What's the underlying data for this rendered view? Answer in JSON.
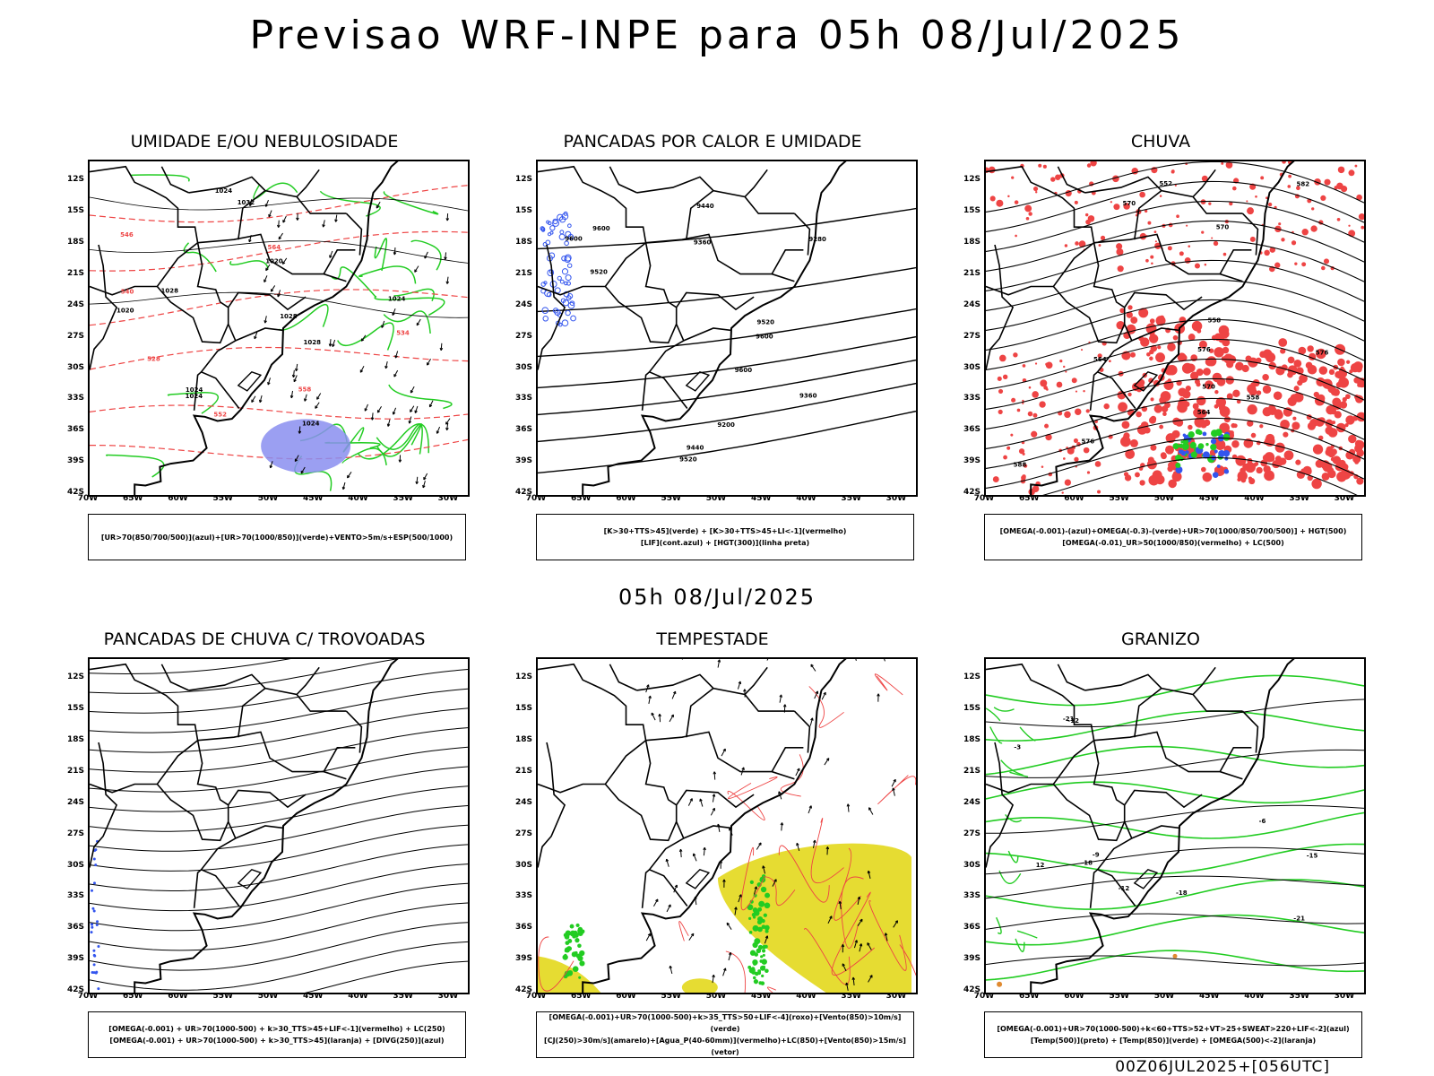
{
  "title": "Previsao WRF-INPE  para 05h 08/Jul/2025",
  "mid_date": "05h 08/Jul/2025",
  "footer": "00Z06JUL2025+[056UTC]",
  "y_ticks": [
    "12S",
    "15S",
    "18S",
    "21S",
    "24S",
    "27S",
    "30S",
    "33S",
    "36S",
    "39S",
    "42S"
  ],
  "x_ticks": [
    "70W",
    "65W",
    "60W",
    "55W",
    "50W",
    "45W",
    "40W",
    "35W",
    "30W"
  ],
  "colors": {
    "black": "#000000",
    "green": "#22cc22",
    "red": "#ee4444",
    "blue": "#3355ee",
    "lavender": "#8a8ef0",
    "yellow": "#e6dc32",
    "orange": "#e08a30"
  },
  "panels": [
    {
      "id": "p1",
      "title": "UMIDADE E/OU NEBULOSIDADE",
      "legend": [
        "[UR>70(850/700/500)](azul)+[UR>70(1000/850)](verde)+VENTO>5m/s+ESP(500/1000)"
      ],
      "contour_labels": [
        "1020",
        "1024",
        "1024",
        "1028",
        "1020",
        "1024",
        "1028",
        "1024",
        "1032",
        "1024",
        "1028",
        "564",
        "552",
        "546",
        "558",
        "540",
        "534",
        "528"
      ]
    },
    {
      "id": "p2",
      "title": "PANCADAS POR CALOR E UMIDADE",
      "legend": [
        "[K>30+TTS>45](verde) + [K>30+TTS>45+LI<-1](vermelho)",
        "[LIF](cont.azul) + [HGT(300)](linha preta)"
      ],
      "contour_labels": [
        "9600",
        "9600",
        "9600",
        "9520",
        "9520",
        "9440",
        "9360",
        "9280",
        "9200",
        "9360",
        "9600",
        "9520",
        "9440"
      ]
    },
    {
      "id": "p3",
      "title": "CHUVA",
      "legend": [
        "[OMEGA(-0.001)-(azul)+OMEGA(-0.3)-(verde)+UR>70(1000/850/700/500)] + HGT(500)",
        "[OMEGA(-0.01)_UR>50(1000/850)(vermelho) + LC(500)"
      ],
      "contour_labels": [
        "588",
        "582",
        "576",
        "570",
        "564",
        "558",
        "570",
        "576",
        "576",
        "570",
        "564",
        "558",
        "552"
      ]
    },
    {
      "id": "p4",
      "title": "PANCADAS DE CHUVA C/ TROVOADAS",
      "legend": [
        "[OMEGA(-0.001) + UR>70(1000-500) + k>30_TTS>45+LIF<-1](vermelho) + LC(250)",
        "[OMEGA(-0.001) + UR>70(1000-500) + k>30_TTS>45](laranja) + [DIVG(250)](azul)"
      ],
      "contour_labels": []
    },
    {
      "id": "p5",
      "title": "TEMPESTADE",
      "legend": [
        "[OMEGA(-0.001)+UR>70(1000-500)+k>35_TTS>50+LIF<-4](roxo)+[Vento(850)>10m/s](verde)",
        "[CJ(250)>30m/s](amarelo)+[Agua_P(40-60mm)](vermelho)+LC(850)+[Vento(850)>15m/s](vetor)"
      ],
      "contour_labels": []
    },
    {
      "id": "p6",
      "title": "GRANIZO",
      "legend": [
        "[OMEGA(-0.001)+UR>70(1000-500)+k<60+TTS>52+VT>25+SWEAT>220+LIF<-2](azul)",
        "[Temp(500)](preto) + [Temp(850)](verde) + [OMEGA(500)<-2](laranja)"
      ],
      "contour_labels": [
        "-3",
        "-6",
        "-9",
        "-12",
        "-15",
        "-18",
        "-21",
        "-18",
        "-21",
        "-12",
        "12"
      ]
    }
  ]
}
